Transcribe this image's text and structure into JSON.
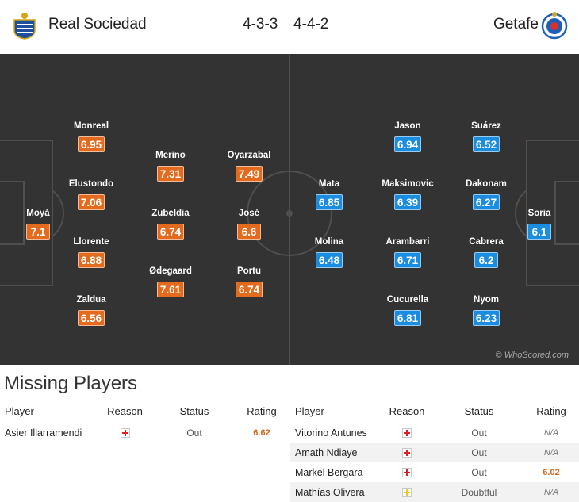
{
  "header": {
    "home_team": "Real Sociedad",
    "away_team": "Getafe",
    "home_formation": "4-3-3",
    "away_formation": "4-4-2",
    "home_crest_icon": "real-sociedad-crest",
    "away_crest_icon": "getafe-crest"
  },
  "colors": {
    "pitch": "#333333",
    "home_rating": "#e46a1e",
    "away_rating": "#1a8de0",
    "rating_highlight": "#d2691e",
    "injury": "#e02020",
    "doubtful": "#f2c61f"
  },
  "lineup": {
    "home": [
      {
        "name": "Moyá",
        "rating": "7.1"
      },
      {
        "name": "Monreal",
        "rating": "6.95"
      },
      {
        "name": "Elustondo",
        "rating": "7.06"
      },
      {
        "name": "Llorente",
        "rating": "6.88"
      },
      {
        "name": "Zaldua",
        "rating": "6.56"
      },
      {
        "name": "Merino",
        "rating": "7.31"
      },
      {
        "name": "Zubeldia",
        "rating": "6.74"
      },
      {
        "name": "Ødegaard",
        "rating": "7.61"
      },
      {
        "name": "Oyarzabal",
        "rating": "7.49"
      },
      {
        "name": "José",
        "rating": "6.6"
      },
      {
        "name": "Portu",
        "rating": "6.74"
      }
    ],
    "away": [
      {
        "name": "Mata",
        "rating": "6.85"
      },
      {
        "name": "Molina",
        "rating": "6.48"
      },
      {
        "name": "Jason",
        "rating": "6.94"
      },
      {
        "name": "Maksimovic",
        "rating": "6.39"
      },
      {
        "name": "Arambarri",
        "rating": "6.71"
      },
      {
        "name": "Cucurella",
        "rating": "6.81"
      },
      {
        "name": "Suárez",
        "rating": "6.52"
      },
      {
        "name": "Dakonam",
        "rating": "6.27"
      },
      {
        "name": "Cabrera",
        "rating": "6.2"
      },
      {
        "name": "Nyom",
        "rating": "6.23"
      },
      {
        "name": "Soria",
        "rating": "6.1"
      }
    ]
  },
  "watermark": "© WhoScored.com",
  "missing": {
    "title": "Missing Players",
    "columns": [
      "Player",
      "Reason",
      "Status",
      "Rating"
    ],
    "home": [
      {
        "player": "Asier Illarramendi",
        "reason_icon": "injury-icon",
        "status": "Out",
        "rating": "6.62"
      }
    ],
    "away": [
      {
        "player": "Vitorino Antunes",
        "reason_icon": "injury-icon",
        "status": "Out",
        "rating": "N/A"
      },
      {
        "player": "Amath Ndiaye",
        "reason_icon": "injury-icon",
        "status": "Out",
        "rating": "N/A"
      },
      {
        "player": "Markel Bergara",
        "reason_icon": "injury-icon",
        "status": "Out",
        "rating": "6.02"
      },
      {
        "player": "Mathías Olivera",
        "reason_icon": "doubtful-icon",
        "status": "Doubtful",
        "rating": "N/A"
      }
    ]
  }
}
